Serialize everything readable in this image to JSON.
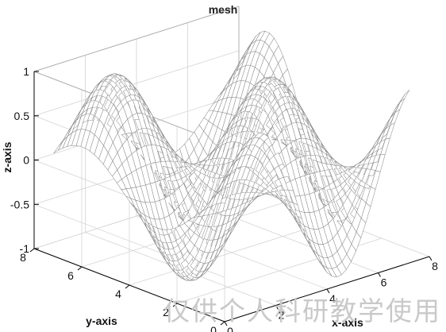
{
  "chart_data": {
    "type": "mesh",
    "title": "mesh",
    "function": "z = sin(x) * cos(y)",
    "xlabel": "x-axis",
    "ylabel": "y-axis",
    "zlabel": "z-axis",
    "xlim": [
      0,
      8
    ],
    "ylim": [
      0,
      8
    ],
    "zlim": [
      -1,
      1
    ],
    "x_ticks": [
      "0",
      "2",
      "4",
      "6",
      "8"
    ],
    "y_ticks": [
      "0",
      "2",
      "4",
      "6",
      "8"
    ],
    "z_ticks": [
      "-1",
      "-0.5",
      "0",
      "0.5",
      "1"
    ],
    "x_range": [
      0.3,
      7.5
    ],
    "y_range": [
      0.3,
      7.5
    ],
    "grid": true,
    "box": true
  },
  "watermark": "仅供个人科研教学使用",
  "colors": {
    "mesh_line": "#8f8f8f",
    "mesh_face": "#ffffff",
    "grid": "#d4d4d4",
    "axis": "#000000",
    "watermark": "#c9c9c9"
  }
}
